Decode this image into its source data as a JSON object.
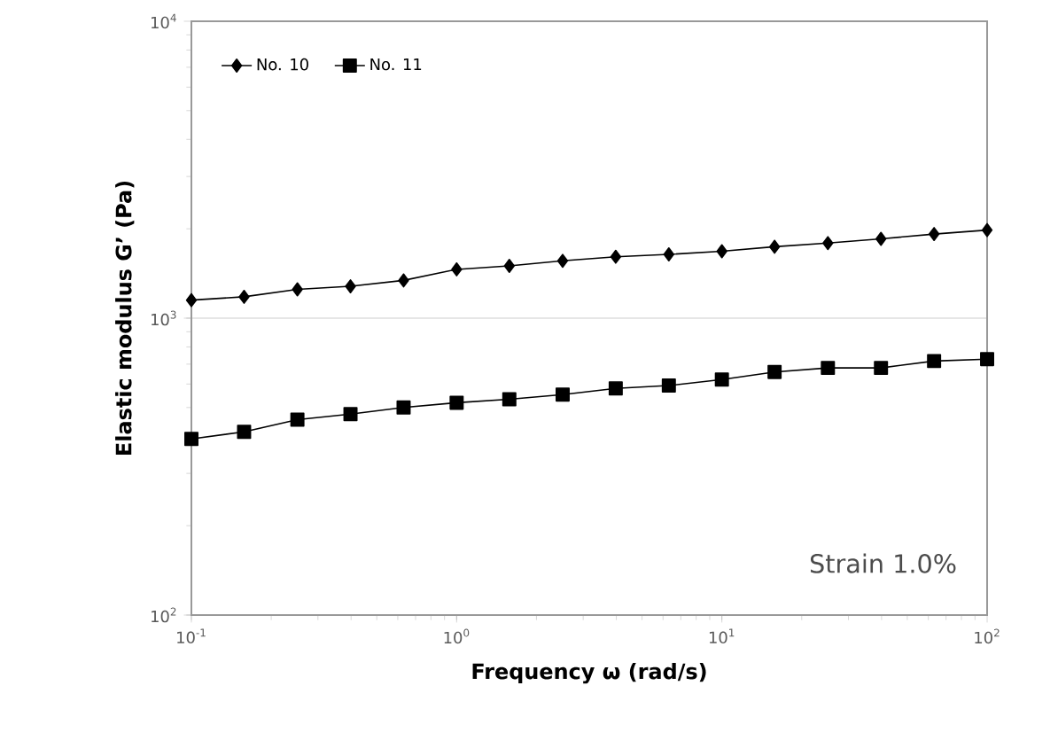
{
  "chart_data": {
    "type": "line",
    "xlabel": "Frequency  ω  (rad/s)",
    "ylabel": "Elastic  modulus  G’  (Pa)",
    "x": [
      0.1,
      0.158,
      0.251,
      0.398,
      0.631,
      1,
      1.58,
      2.51,
      3.98,
      6.31,
      10,
      15.8,
      25.1,
      39.8,
      63.1,
      100
    ],
    "series": [
      {
        "name": "No. 10",
        "color": "#000000",
        "marker": "diamond",
        "values": [
          1150,
          1180,
          1250,
          1280,
          1340,
          1460,
          1500,
          1560,
          1610,
          1640,
          1680,
          1740,
          1790,
          1850,
          1920,
          1980
        ]
      },
      {
        "name": "No. 11",
        "color": "#000000",
        "marker": "square",
        "values": [
          392,
          414,
          455,
          475,
          500,
          519,
          533,
          553,
          580,
          593,
          621,
          659,
          680,
          680,
          717,
          728
        ]
      }
    ],
    "log": "xy",
    "xlim": [
      0.1,
      100
    ],
    "ylim": [
      100,
      10000
    ],
    "xticks": [
      {
        "value": 0.1,
        "label": "10$^{-1}$"
      },
      {
        "value": 1,
        "label": "10$^{0}$"
      },
      {
        "value": 10,
        "label": "10$^{1}$"
      },
      {
        "value": 100,
        "label": "10$^{2}$"
      }
    ],
    "yticks": [
      {
        "value": 100,
        "label": "10$^{2}$"
      },
      {
        "value": 1000,
        "label": "10$^{3}$"
      },
      {
        "value": 10000,
        "label": "10$^{4}$"
      }
    ],
    "grid": "y",
    "legend": "top left",
    "line_style": "solid",
    "annotations": [
      "Strain  1.0%"
    ]
  }
}
